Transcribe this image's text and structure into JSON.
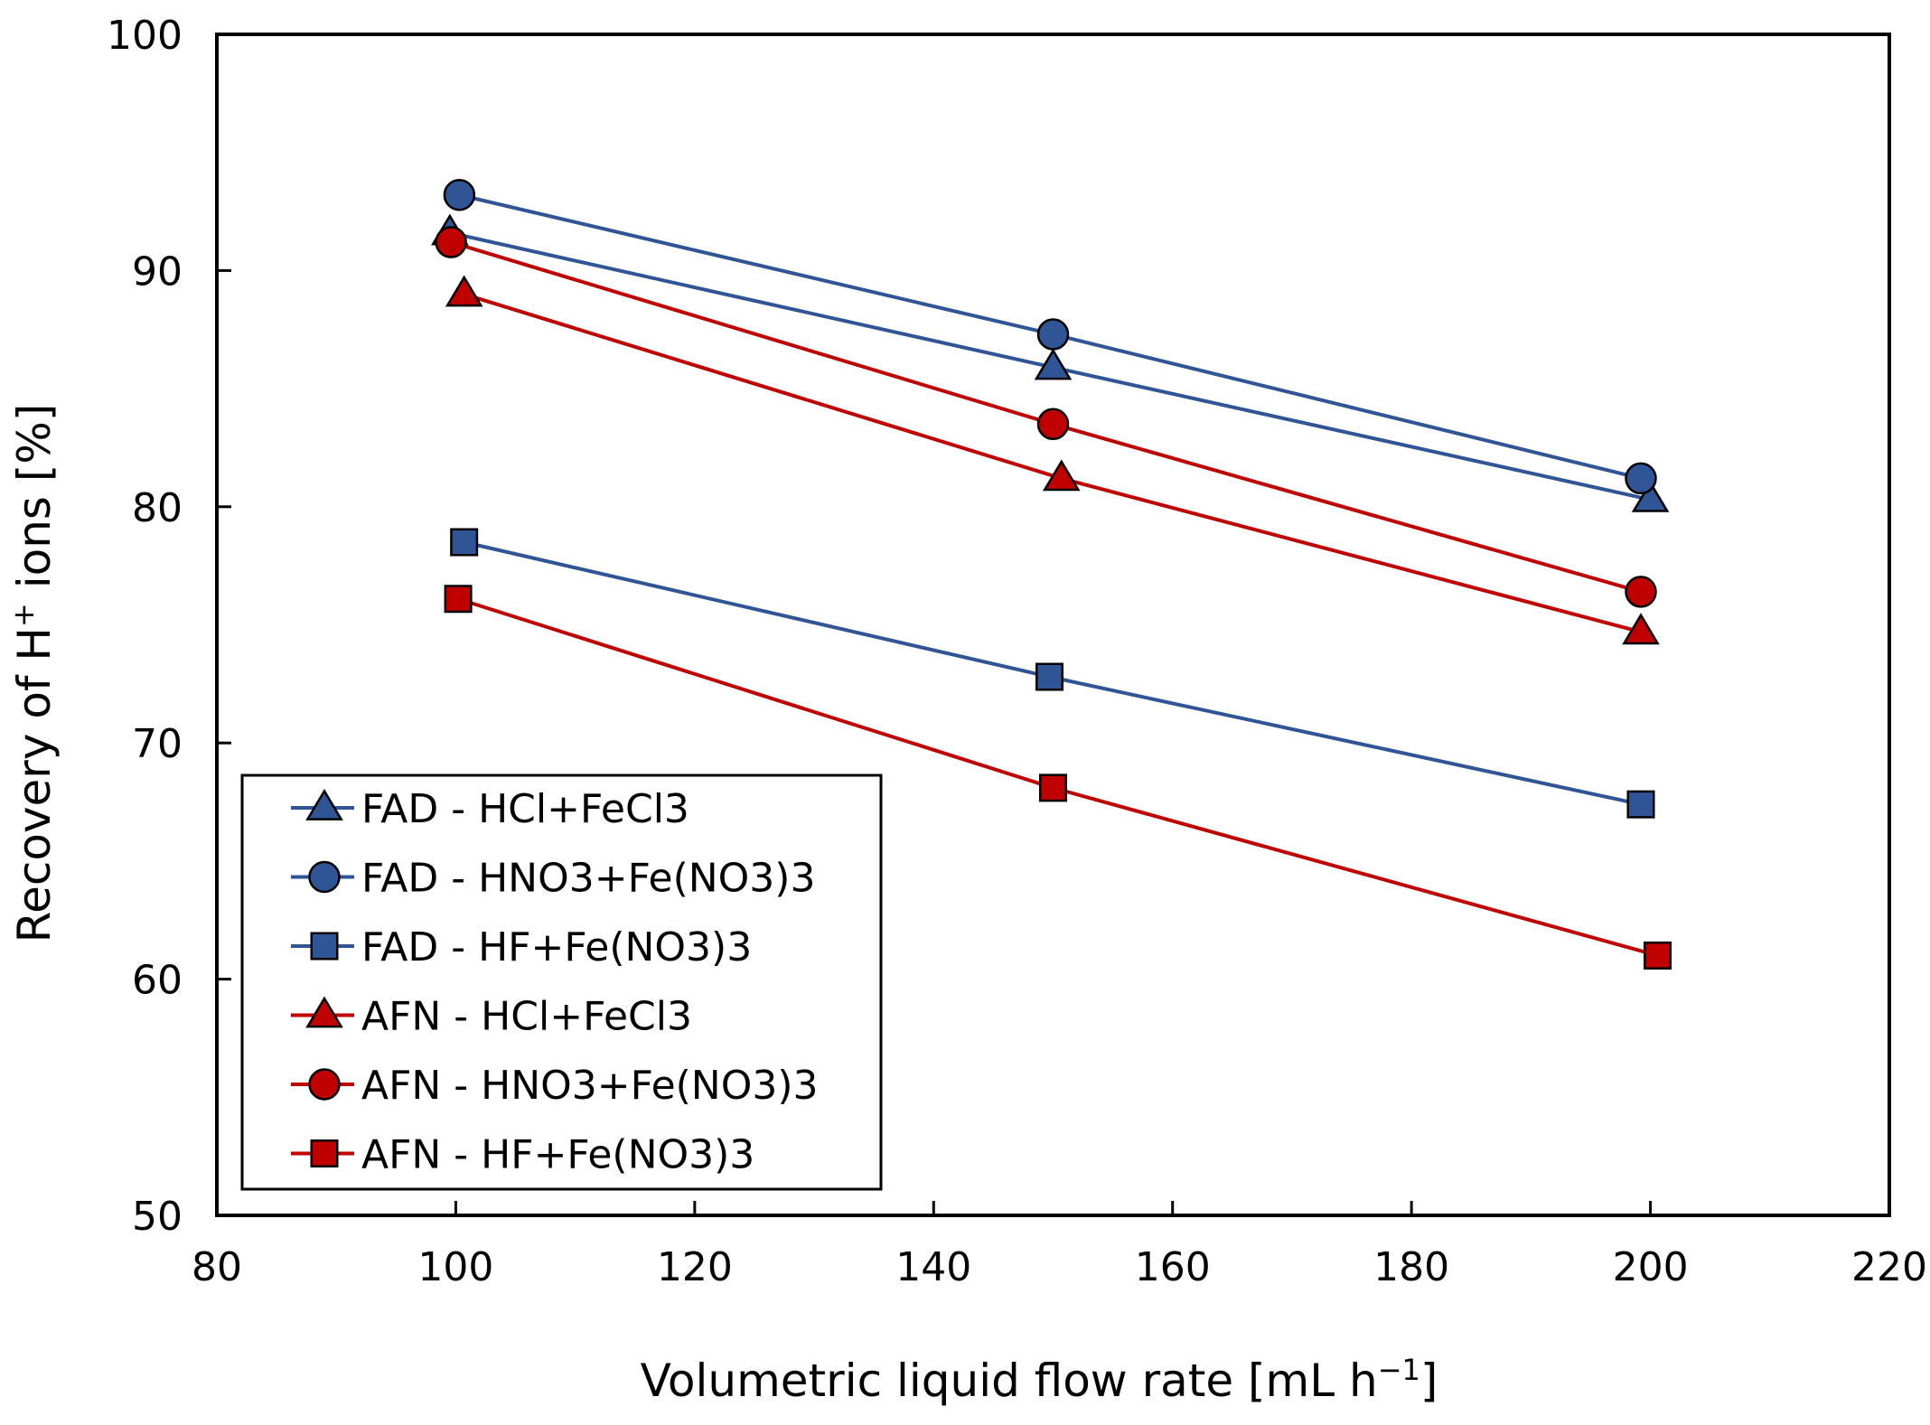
{
  "chart_data": {
    "type": "line",
    "title": "",
    "xlabel": {
      "main": "Volumetric liquid flow rate [mL h",
      "sup": "−1",
      "end": "]"
    },
    "ylabel": {
      "main": "Recovery of H",
      "sup": "+",
      "end": " ions [%]"
    },
    "xlim": [
      80,
      220
    ],
    "ylim": [
      50,
      100
    ],
    "xticks": [
      "80",
      "100",
      "120",
      "140",
      "160",
      "180",
      "200",
      "220"
    ],
    "yticks": [
      "50",
      "60",
      "70",
      "80",
      "90",
      "100"
    ],
    "legend_position": "bottom-left",
    "series": [
      {
        "name": "FAD - HCl+FeCl3",
        "color": "#2f5597",
        "marker": "triangle",
        "fill": "#2f5597",
        "points": [
          [
            99.5,
            91.6
          ],
          [
            150,
            85.9
          ],
          [
            200,
            80.3
          ]
        ]
      },
      {
        "name": "FAD - HNO3+Fe(NO3)3",
        "color": "#2f5597",
        "marker": "circle",
        "fill": "#2f5597",
        "points": [
          [
            100.3,
            93.2
          ],
          [
            150,
            87.3
          ],
          [
            199.2,
            81.2
          ]
        ]
      },
      {
        "name": "FAD - HF+Fe(NO3)3",
        "color": "#2f5597",
        "marker": "square",
        "fill": "#2f5597",
        "points": [
          [
            100.7,
            78.5
          ],
          [
            149.7,
            72.8
          ],
          [
            199.2,
            67.4
          ]
        ]
      },
      {
        "name": "AFN - HCl+FeCl3",
        "color": "#c00000",
        "marker": "triangle",
        "fill": "#c00000",
        "points": [
          [
            100.7,
            89.0
          ],
          [
            150.7,
            81.2
          ],
          [
            199.2,
            74.7
          ]
        ]
      },
      {
        "name": "AFN - HNO3+Fe(NO3)3",
        "color": "#c00000",
        "marker": "circle",
        "fill": "#c00000",
        "points": [
          [
            99.6,
            91.2
          ],
          [
            150,
            83.5
          ],
          [
            199.2,
            76.4
          ]
        ]
      },
      {
        "name": "AFN - HF+Fe(NO3)3",
        "color": "#c00000",
        "marker": "square",
        "fill": "#c00000",
        "points": [
          [
            100.2,
            76.1
          ],
          [
            150,
            68.1
          ],
          [
            200.6,
            61.0
          ]
        ]
      }
    ]
  }
}
